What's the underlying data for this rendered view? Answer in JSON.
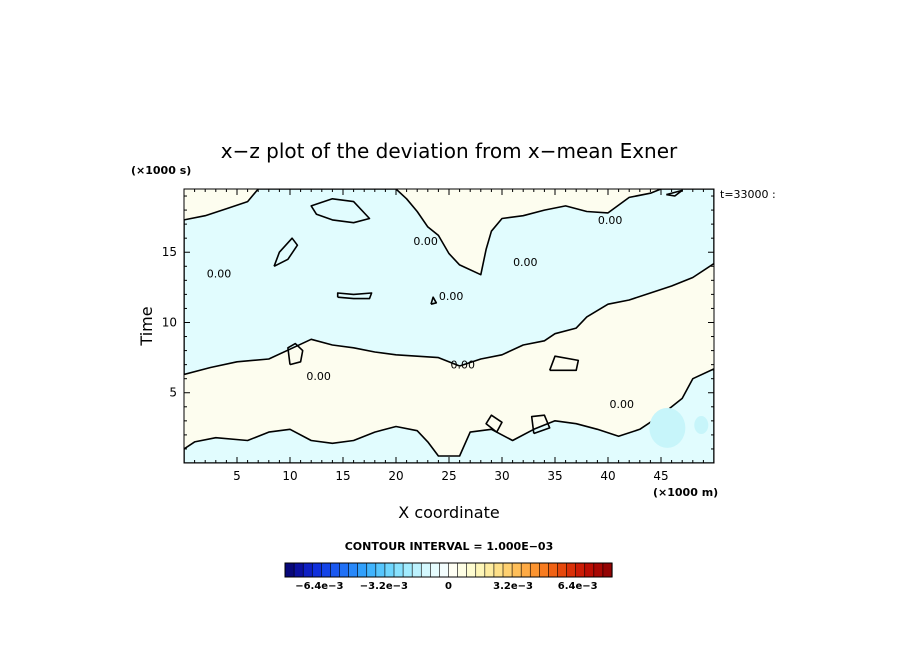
{
  "chart_data": {
    "type": "contour",
    "title": "x−z plot of the deviation from x−mean Exner",
    "xlabel": "X coordinate",
    "ylabel": "Time",
    "x_unit": "(×1000 m)",
    "y_unit": "(×1000 s)",
    "time_label": "t=33000 :",
    "xlim": [
      0,
      50
    ],
    "ylim": [
      0,
      19.5
    ],
    "x_ticks": [
      5,
      10,
      15,
      20,
      25,
      30,
      35,
      40,
      45
    ],
    "x_tick_labels": [
      "5",
      "10",
      "15",
      "20",
      "25",
      "30",
      "35",
      "40",
      "45"
    ],
    "y_ticks": [
      5,
      10,
      15
    ],
    "y_tick_labels": [
      "5",
      "10",
      "15"
    ],
    "contour_level_label": "0.00",
    "contour_labels": [
      {
        "text": "0.00",
        "x": 3.3,
        "y": 13.5
      },
      {
        "text": "0.00",
        "x": 22.8,
        "y": 15.8
      },
      {
        "text": "0.00",
        "x": 25.2,
        "y": 11.9
      },
      {
        "text": "0.00",
        "x": 26.3,
        "y": 7.0
      },
      {
        "text": "0.00",
        "x": 12.7,
        "y": 6.2
      },
      {
        "text": "0.00",
        "x": 32.2,
        "y": 14.3
      },
      {
        "text": "0.00",
        "x": 40.2,
        "y": 17.3
      },
      {
        "text": "0.00",
        "x": 41.3,
        "y": 4.2
      }
    ],
    "negative_regions": [
      [
        [
          0,
          6.3
        ],
        [
          2.5,
          6.8
        ],
        [
          5,
          7.2
        ],
        [
          8,
          7.4
        ],
        [
          10,
          8.1
        ],
        [
          12,
          8.8
        ],
        [
          14,
          8.4
        ],
        [
          16,
          8.2
        ],
        [
          18,
          7.9
        ],
        [
          20,
          7.7
        ],
        [
          22,
          7.6
        ],
        [
          24,
          7.5
        ],
        [
          26,
          6.9
        ],
        [
          28,
          7.4
        ],
        [
          30,
          7.7
        ],
        [
          32,
          8.4
        ],
        [
          34,
          8.7
        ],
        [
          35,
          9.2
        ],
        [
          37,
          9.6
        ],
        [
          38,
          10.4
        ],
        [
          40,
          11.3
        ],
        [
          42,
          11.6
        ],
        [
          44,
          12.1
        ],
        [
          46,
          12.6
        ],
        [
          48,
          13.2
        ],
        [
          50,
          14.2
        ],
        [
          50,
          19.5
        ],
        [
          45,
          19.5
        ],
        [
          44,
          19.2
        ],
        [
          42,
          18.9
        ],
        [
          40,
          17.8
        ],
        [
          38,
          17.9
        ],
        [
          36,
          18.3
        ],
        [
          34,
          18.0
        ],
        [
          32,
          17.6
        ],
        [
          30,
          17.4
        ],
        [
          29,
          16.5
        ],
        [
          28.5,
          15.2
        ],
        [
          28,
          13.4
        ],
        [
          26,
          14.1
        ],
        [
          25,
          14.9
        ],
        [
          24,
          16.2
        ],
        [
          23,
          16.8
        ],
        [
          22,
          17.9
        ],
        [
          21,
          18.8
        ],
        [
          20,
          19.5
        ],
        [
          7,
          19.5
        ],
        [
          6,
          18.6
        ],
        [
          4,
          18.1
        ],
        [
          2,
          17.6
        ],
        [
          0,
          17.3
        ]
      ],
      [
        [
          12,
          18.3
        ],
        [
          14,
          18.8
        ],
        [
          16,
          18.6
        ],
        [
          17.5,
          17.4
        ],
        [
          16,
          17.1
        ],
        [
          14,
          17.3
        ],
        [
          12.5,
          17.7
        ]
      ],
      [
        [
          0,
          1.0
        ],
        [
          1,
          1.5
        ],
        [
          3,
          1.8
        ],
        [
          6,
          1.6
        ],
        [
          8,
          2.2
        ],
        [
          10,
          2.4
        ],
        [
          12,
          1.6
        ],
        [
          14,
          1.4
        ],
        [
          16,
          1.6
        ],
        [
          18,
          2.2
        ],
        [
          20,
          2.6
        ],
        [
          22,
          2.3
        ],
        [
          23,
          1.5
        ],
        [
          24,
          0.5
        ],
        [
          26,
          0.5
        ],
        [
          27,
          2.2
        ],
        [
          29,
          2.4
        ],
        [
          31,
          1.6
        ],
        [
          33,
          2.4
        ],
        [
          35,
          3.0
        ],
        [
          37,
          2.8
        ],
        [
          39,
          2.4
        ],
        [
          41,
          1.9
        ],
        [
          43,
          2.4
        ],
        [
          45,
          3.4
        ],
        [
          47,
          4.6
        ],
        [
          48,
          6.0
        ],
        [
          50,
          6.7
        ],
        [
          50,
          0
        ],
        [
          0,
          0
        ]
      ]
    ],
    "contour_lines": [
      [
        [
          14.5,
          11.8
        ],
        [
          16,
          11.7
        ],
        [
          17.5,
          11.7
        ],
        [
          17.7,
          12.1
        ],
        [
          16,
          12.0
        ],
        [
          14.5,
          12.1
        ],
        [
          14.5,
          11.8
        ]
      ],
      [
        [
          10,
          7.0
        ],
        [
          11,
          7.2
        ],
        [
          11.2,
          8.0
        ],
        [
          10.5,
          8.5
        ],
        [
          9.8,
          8.2
        ],
        [
          10,
          7.0
        ]
      ],
      [
        [
          8.5,
          14.0
        ],
        [
          9.8,
          14.5
        ],
        [
          10.7,
          15.5
        ],
        [
          10.2,
          16.0
        ],
        [
          9,
          15.0
        ],
        [
          8.5,
          14.0
        ]
      ],
      [
        [
          29.5,
          2.2
        ],
        [
          30,
          2.9
        ],
        [
          29,
          3.4
        ],
        [
          28.5,
          2.8
        ],
        [
          29.5,
          2.2
        ]
      ],
      [
        [
          33,
          2.1
        ],
        [
          34.5,
          2.5
        ],
        [
          34,
          3.4
        ],
        [
          32.8,
          3.3
        ],
        [
          33,
          2.1
        ]
      ],
      [
        [
          34.5,
          6.6
        ],
        [
          37,
          6.6
        ],
        [
          37.2,
          7.3
        ],
        [
          35,
          7.6
        ],
        [
          34.5,
          6.6
        ]
      ],
      [
        [
          45.5,
          19.1
        ],
        [
          47,
          19.4
        ],
        [
          46.3,
          19.0
        ],
        [
          45.5,
          19.1
        ]
      ],
      [
        [
          23.3,
          11.3
        ],
        [
          23.8,
          11.4
        ],
        [
          23.5,
          11.8
        ],
        [
          23.3,
          11.3
        ]
      ]
    ],
    "fill_negative": "#e1fcfe",
    "fill_positive": "#fdfdef",
    "fill_negative_strong": "#c7f5fa",
    "colorbar": {
      "title": "CONTOUR INTERVAL = 1.000E−03",
      "labels": [
        "−6.4e−3",
        "−3.2e−3",
        "0",
        "3.2e−3",
        "6.4e−3"
      ],
      "label_values": [
        -0.0064,
        -0.0032,
        0,
        0.0032,
        0.0064
      ],
      "vmin": -0.0081,
      "vmax": 0.0081,
      "colors": [
        "#08087a",
        "#0b10a0",
        "#0e20c4",
        "#1030dc",
        "#1444e8",
        "#1a58f0",
        "#2070f6",
        "#2888fa",
        "#30a0fc",
        "#40b4fd",
        "#56c6fd",
        "#6ed6fe",
        "#88e2fe",
        "#a2ecfe",
        "#bcf2fe",
        "#d4f8fe",
        "#e6fcfe",
        "#f4fefe",
        "#fffff4",
        "#fefee4",
        "#fefcd0",
        "#fef6b8",
        "#feeca0",
        "#fee088",
        "#fed070",
        "#febe58",
        "#feaa44",
        "#fc9430",
        "#f87c20",
        "#f06214",
        "#e6480c",
        "#da3008",
        "#cc1c06",
        "#bc0e04",
        "#a80804",
        "#940404"
      ]
    }
  }
}
